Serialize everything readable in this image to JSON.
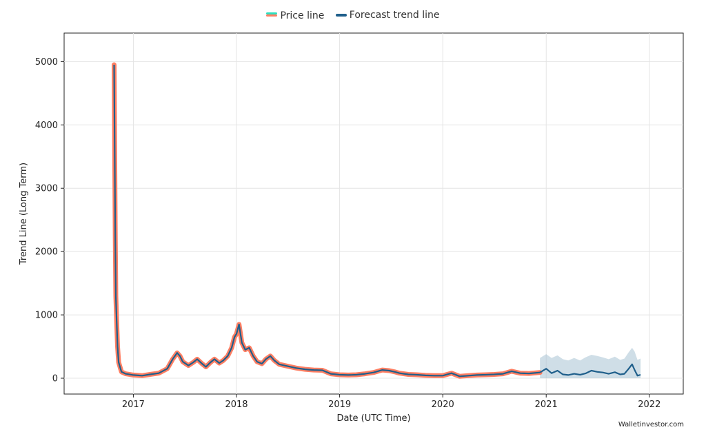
{
  "legend": {
    "price_label": "Price line",
    "forecast_label": "Forecast trend line"
  },
  "watermark": "Walletinvestor.com",
  "chart_data": {
    "type": "line",
    "title": "",
    "xlabel": "Date (UTC Time)",
    "ylabel": "Trend Line (Long Term)",
    "x_ticks": [
      "2017",
      "2018",
      "2019",
      "2020",
      "2021",
      "2022"
    ],
    "y_ticks": [
      0,
      1000,
      2000,
      3000,
      4000,
      5000
    ],
    "xlim": [
      "2016-05-01",
      "2022-05-01"
    ],
    "ylim": [
      -250,
      5450
    ],
    "grid": true,
    "legend_position": "top-center",
    "colors": {
      "price": "#ff7f63",
      "price_legend_accent": "#2ee0c0",
      "forecast": "#1f5f8b",
      "band": "#9fbdd0"
    },
    "series": [
      {
        "name": "Price line",
        "x": [
          "2016-10-25",
          "2016-10-27",
          "2016-10-29",
          "2016-10-31",
          "2016-11-03",
          "2016-11-06",
          "2016-11-10",
          "2016-11-20",
          "2016-12-05",
          "2017-01-01",
          "2017-02-01",
          "2017-03-01",
          "2017-04-01",
          "2017-05-01",
          "2017-05-20",
          "2017-06-05",
          "2017-06-15",
          "2017-06-25",
          "2017-07-15",
          "2017-08-01",
          "2017-08-15",
          "2017-09-01",
          "2017-09-15",
          "2017-10-01",
          "2017-10-15",
          "2017-11-01",
          "2017-11-15",
          "2017-12-01",
          "2017-12-15",
          "2017-12-25",
          "2018-01-01",
          "2018-01-10",
          "2018-01-20",
          "2018-02-01",
          "2018-02-15",
          "2018-03-01",
          "2018-03-15",
          "2018-04-01",
          "2018-04-15",
          "2018-05-01",
          "2018-05-15",
          "2018-06-01",
          "2018-07-01",
          "2018-08-01",
          "2018-09-01",
          "2018-10-01",
          "2018-11-01",
          "2018-12-01",
          "2019-01-01",
          "2019-02-01",
          "2019-03-01",
          "2019-04-01",
          "2019-05-01",
          "2019-06-01",
          "2019-06-25",
          "2019-07-15",
          "2019-08-01",
          "2019-09-01",
          "2019-10-01",
          "2019-11-01",
          "2019-12-01",
          "2020-01-01",
          "2020-02-01",
          "2020-03-01",
          "2020-04-01",
          "2020-05-01",
          "2020-06-01",
          "2020-07-01",
          "2020-08-01",
          "2020-09-01",
          "2020-10-01",
          "2020-11-01",
          "2020-12-10"
        ],
        "y": [
          4950,
          3500,
          2200,
          1300,
          900,
          500,
          250,
          100,
          70,
          50,
          40,
          60,
          80,
          150,
          300,
          400,
          350,
          260,
          200,
          250,
          300,
          230,
          180,
          250,
          300,
          240,
          280,
          350,
          480,
          650,
          700,
          850,
          560,
          450,
          480,
          350,
          260,
          230,
          300,
          350,
          280,
          220,
          190,
          160,
          140,
          130,
          125,
          70,
          55,
          50,
          55,
          70,
          90,
          130,
          120,
          100,
          80,
          60,
          55,
          45,
          40,
          40,
          80,
          30,
          40,
          50,
          55,
          60,
          70,
          110,
          80,
          75,
          90
        ]
      },
      {
        "name": "Forecast trend line",
        "x": [
          "2020-12-10",
          "2021-01-01",
          "2021-01-20",
          "2021-02-10",
          "2021-03-01",
          "2021-03-20",
          "2021-04-10",
          "2021-05-01",
          "2021-05-20",
          "2021-06-10",
          "2021-07-01",
          "2021-07-20",
          "2021-08-10",
          "2021-09-01",
          "2021-09-20",
          "2021-10-05",
          "2021-10-20",
          "2021-11-01",
          "2021-11-10",
          "2021-11-20",
          "2021-12-01"
        ],
        "y": [
          90,
          150,
          80,
          120,
          60,
          50,
          70,
          55,
          75,
          120,
          100,
          90,
          70,
          95,
          60,
          70,
          150,
          220,
          130,
          40,
          55
        ],
        "upper": [
          320,
          380,
          320,
          360,
          300,
          280,
          320,
          280,
          330,
          370,
          350,
          330,
          300,
          340,
          290,
          310,
          410,
          480,
          420,
          290,
          310
        ],
        "lower": [
          0,
          0,
          0,
          0,
          0,
          0,
          0,
          0,
          0,
          0,
          0,
          0,
          0,
          0,
          0,
          0,
          0,
          0,
          0,
          0,
          0
        ]
      }
    ]
  }
}
